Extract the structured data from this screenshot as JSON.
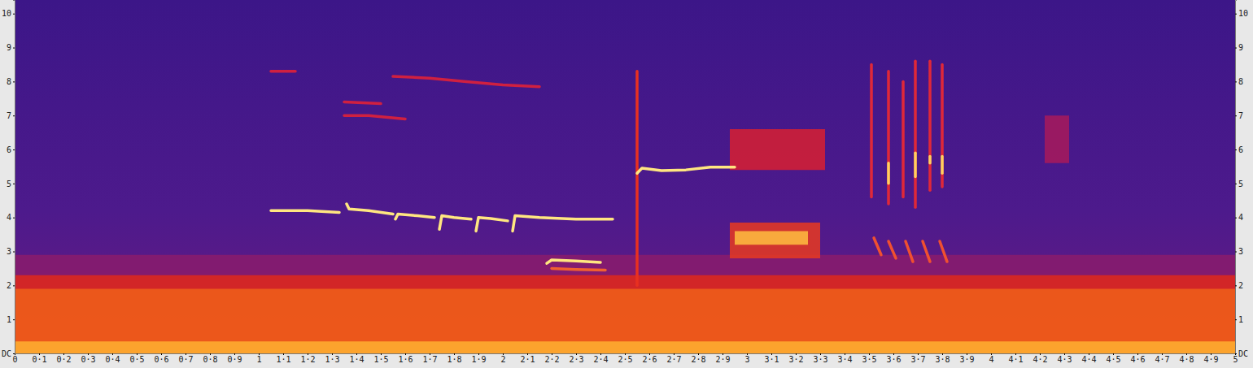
{
  "chart_data": {
    "type": "spectrogram",
    "xlim": [
      0,
      5
    ],
    "xticks": [
      0,
      {
        "value": 0.1,
        "label": "0·1"
      },
      {
        "value": 0.2,
        "label": "0·2"
      },
      {
        "value": 0.3,
        "label": "0·3"
      },
      {
        "value": 0.4,
        "label": "0·4"
      },
      {
        "value": 0.5,
        "label": "0·5"
      },
      {
        "value": 0.6,
        "label": "0·6"
      },
      {
        "value": 0.7,
        "label": "0·7"
      },
      {
        "value": 0.8,
        "label": "0·8"
      },
      {
        "value": 0.9,
        "label": "0·9"
      },
      1,
      {
        "value": 1.1,
        "label": "1·1"
      },
      {
        "value": 1.2,
        "label": "1·2"
      },
      {
        "value": 1.3,
        "label": "1·3"
      },
      {
        "value": 1.4,
        "label": "1·4"
      },
      {
        "value": 1.5,
        "label": "1·5"
      },
      {
        "value": 1.6,
        "label": "1·6"
      },
      {
        "value": 1.7,
        "label": "1·7"
      },
      {
        "value": 1.8,
        "label": "1·8"
      },
      {
        "value": 1.9,
        "label": "1·9"
      },
      2,
      {
        "value": 2.1,
        "label": "2·1"
      },
      {
        "value": 2.2,
        "label": "2·2"
      },
      {
        "value": 2.3,
        "label": "2·3"
      },
      {
        "value": 2.4,
        "label": "2·4"
      },
      {
        "value": 2.5,
        "label": "2·5"
      },
      {
        "value": 2.6,
        "label": "2·6"
      },
      {
        "value": 2.7,
        "label": "2·7"
      },
      {
        "value": 2.8,
        "label": "2·8"
      },
      {
        "value": 2.9,
        "label": "2·9"
      },
      3,
      {
        "value": 3.1,
        "label": "3·1"
      },
      {
        "value": 3.2,
        "label": "3·2"
      },
      {
        "value": 3.3,
        "label": "3·3"
      },
      {
        "value": 3.4,
        "label": "3·4"
      },
      {
        "value": 3.5,
        "label": "3·5"
      },
      {
        "value": 3.6,
        "label": "3·6"
      },
      {
        "value": 3.7,
        "label": "3·7"
      },
      {
        "value": 3.8,
        "label": "3·8"
      },
      {
        "value": 3.9,
        "label": "3·9"
      },
      4,
      {
        "value": 4.1,
        "label": "4·1"
      },
      {
        "value": 4.2,
        "label": "4·2"
      },
      {
        "value": 4.3,
        "label": "4·3"
      },
      {
        "value": 4.4,
        "label": "4·4"
      },
      {
        "value": 4.5,
        "label": "4·5"
      },
      {
        "value": 4.6,
        "label": "4·6"
      },
      {
        "value": 4.7,
        "label": "4·7"
      },
      {
        "value": 4.8,
        "label": "4·8"
      },
      {
        "value": 4.9,
        "label": "4·9"
      },
      5
    ],
    "ylim": [
      0,
      10.4
    ],
    "yticks": [
      {
        "value": 0,
        "label": "DC"
      },
      1,
      2,
      3,
      4,
      5,
      6,
      7,
      8,
      9,
      10
    ],
    "y2lim": [
      0,
      10.4
    ],
    "y2ticks": [
      {
        "value": 0,
        "label": "DC"
      },
      1,
      2,
      3,
      4,
      5,
      6,
      7,
      8,
      9,
      10
    ],
    "series": [
      {
        "type": "area",
        "color": "#8a1c6c",
        "x": [
          0,
          5
        ],
        "low": [
          0,
          0
        ],
        "high": [
          2.9,
          2.9
        ]
      },
      {
        "type": "area",
        "color": "#e0281a",
        "x": [
          0,
          5
        ],
        "low": [
          0,
          0
        ],
        "high": [
          2.3,
          2.3
        ]
      },
      {
        "type": "area",
        "color": "#f0601a",
        "x": [
          0,
          5
        ],
        "low": [
          0,
          0
        ],
        "high": [
          1.9,
          1.9
        ]
      },
      {
        "type": "area",
        "color": "#ffb030",
        "x": [
          0,
          5
        ],
        "low": [
          0,
          0
        ],
        "high": [
          0.35,
          0.35
        ]
      },
      {
        "type": "area",
        "color": "#d82030",
        "x": [
          2.93,
          3.32
        ],
        "low": [
          5.4,
          5.4
        ],
        "high": [
          6.6,
          6.6
        ]
      },
      {
        "type": "area",
        "color": "#e83a20",
        "x": [
          2.93,
          3.3
        ],
        "low": [
          2.8,
          2.8
        ],
        "high": [
          3.85,
          3.85
        ]
      },
      {
        "type": "area",
        "color": "#ffc040",
        "x": [
          2.95,
          3.25
        ],
        "low": [
          3.2,
          3.2
        ],
        "high": [
          3.6,
          3.6
        ]
      },
      {
        "type": "area",
        "color": "#a81a5a",
        "x": [
          4.22,
          4.32
        ],
        "low": [
          5.6,
          5.6
        ],
        "high": [
          7.0,
          7.0
        ]
      },
      {
        "type": "line",
        "color": "#d02040",
        "x": [
          1.35,
          1.45,
          1.6
        ],
        "values": [
          7.0,
          7.0,
          6.9
        ]
      },
      {
        "type": "line",
        "color": "#d02040",
        "x": [
          1.35,
          1.5
        ],
        "values": [
          7.4,
          7.35
        ]
      },
      {
        "type": "line",
        "color": "#d02040",
        "x": [
          1.55,
          1.7,
          1.85,
          2.0,
          2.15
        ],
        "values": [
          8.15,
          8.1,
          8.0,
          7.9,
          7.85
        ]
      },
      {
        "type": "line",
        "color": "#d02040",
        "x": [
          1.05,
          1.15
        ],
        "values": [
          8.3,
          8.3
        ]
      },
      {
        "type": "line",
        "color": "#e83020",
        "x": [
          2.55,
          2.55
        ],
        "values": [
          2.0,
          8.3
        ]
      },
      {
        "type": "line",
        "color": "#f06030",
        "x": [
          2.2,
          2.3,
          2.42
        ],
        "values": [
          2.5,
          2.47,
          2.45
        ]
      },
      {
        "type": "line",
        "color": "#e02838",
        "x": [
          3.51,
          3.51
        ],
        "values": [
          4.6,
          8.5
        ]
      },
      {
        "type": "line",
        "color": "#e02838",
        "x": [
          3.58,
          3.58
        ],
        "values": [
          4.4,
          8.3
        ]
      },
      {
        "type": "line",
        "color": "#e02838",
        "x": [
          3.64,
          3.64
        ],
        "values": [
          4.6,
          8.0
        ]
      },
      {
        "type": "line",
        "color": "#e02838",
        "x": [
          3.69,
          3.69
        ],
        "values": [
          4.3,
          8.6
        ]
      },
      {
        "type": "line",
        "color": "#e02838",
        "x": [
          3.75,
          3.75
        ],
        "values": [
          4.8,
          8.6
        ]
      },
      {
        "type": "line",
        "color": "#e02838",
        "x": [
          3.8,
          3.8
        ],
        "values": [
          4.9,
          8.5
        ]
      },
      {
        "type": "line",
        "color": "#f05030",
        "x": [
          3.52,
          3.55
        ],
        "values": [
          3.4,
          2.9
        ]
      },
      {
        "type": "line",
        "color": "#f05030",
        "x": [
          3.58,
          3.61
        ],
        "values": [
          3.3,
          2.8
        ]
      },
      {
        "type": "line",
        "color": "#f05030",
        "x": [
          3.65,
          3.68
        ],
        "values": [
          3.3,
          2.7
        ]
      },
      {
        "type": "line",
        "color": "#f05030",
        "x": [
          3.72,
          3.75
        ],
        "values": [
          3.3,
          2.7
        ]
      },
      {
        "type": "line",
        "color": "#f05030",
        "x": [
          3.79,
          3.82
        ],
        "values": [
          3.3,
          2.7
        ]
      },
      {
        "type": "line",
        "color": "#ffd060",
        "x": [
          3.58,
          3.58
        ],
        "values": [
          5.0,
          5.6
        ]
      },
      {
        "type": "line",
        "color": "#ffd060",
        "x": [
          3.69,
          3.69
        ],
        "values": [
          5.2,
          5.9
        ]
      },
      {
        "type": "line",
        "color": "#ffd060",
        "x": [
          3.75,
          3.75
        ],
        "values": [
          5.6,
          5.8
        ]
      },
      {
        "type": "line",
        "color": "#ffd060",
        "x": [
          3.8,
          3.8
        ],
        "values": [
          5.3,
          5.8
        ]
      },
      {
        "type": "line",
        "color": "#ffe680",
        "x": [
          1.05,
          1.2,
          1.33
        ],
        "values": [
          4.2,
          4.2,
          4.15
        ]
      },
      {
        "type": "line",
        "color": "#ffe680",
        "x": [
          1.36,
          1.37,
          1.45,
          1.55
        ],
        "values": [
          4.4,
          4.25,
          4.2,
          4.1
        ]
      },
      {
        "type": "line",
        "color": "#ffe680",
        "x": [
          1.56,
          1.57,
          1.65,
          1.72
        ],
        "values": [
          3.95,
          4.1,
          4.05,
          4.0
        ]
      },
      {
        "type": "line",
        "color": "#ffe680",
        "x": [
          1.74,
          1.75,
          1.8,
          1.87
        ],
        "values": [
          3.65,
          4.05,
          4.0,
          3.95
        ]
      },
      {
        "type": "line",
        "color": "#ffe680",
        "x": [
          1.89,
          1.9,
          1.95,
          2.02
        ],
        "values": [
          3.6,
          4.0,
          3.97,
          3.9
        ]
      },
      {
        "type": "line",
        "color": "#ffe680",
        "x": [
          2.04,
          2.05,
          2.15,
          2.3,
          2.45
        ],
        "values": [
          3.6,
          4.05,
          4.0,
          3.95,
          3.95
        ]
      },
      {
        "type": "line",
        "color": "#ffe680",
        "x": [
          2.18,
          2.2,
          2.3,
          2.4
        ],
        "values": [
          2.65,
          2.75,
          2.72,
          2.68
        ]
      },
      {
        "type": "line",
        "color": "#ffe680",
        "x": [
          2.55,
          2.57,
          2.65,
          2.75,
          2.85,
          2.95
        ],
        "values": [
          5.3,
          5.45,
          5.38,
          5.4,
          5.48,
          5.48
        ]
      }
    ]
  }
}
